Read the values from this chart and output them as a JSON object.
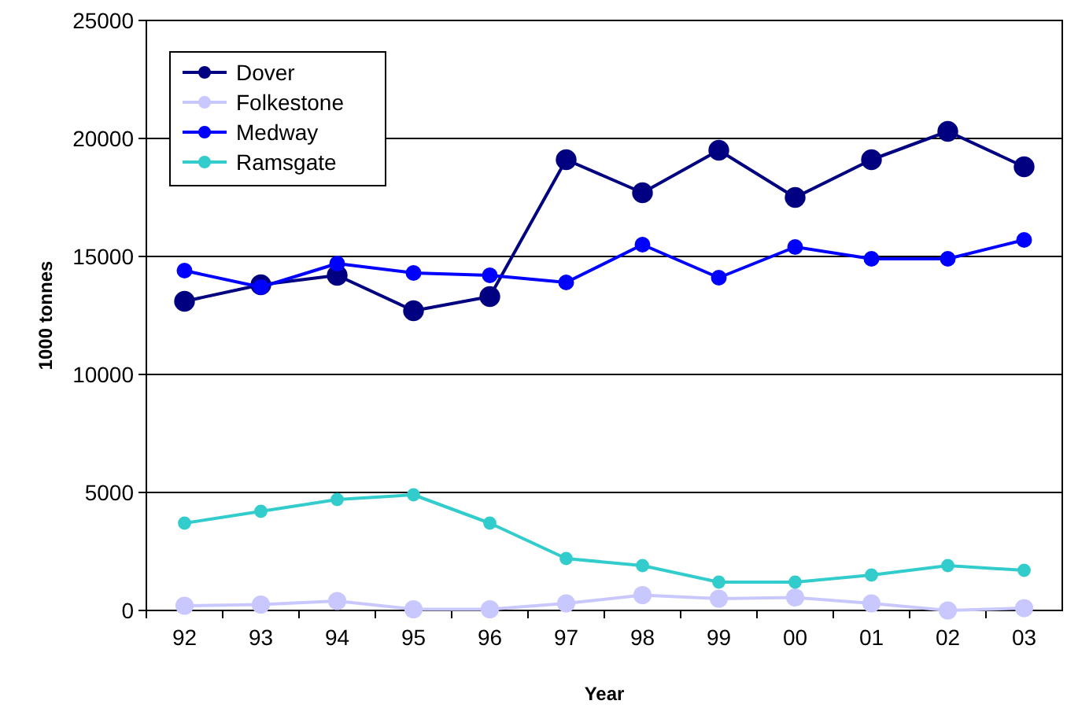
{
  "chart_data": {
    "type": "line",
    "xlabel": "Year",
    "ylabel": "1000 tonnes",
    "categories": [
      "92",
      "93",
      "94",
      "95",
      "96",
      "97",
      "98",
      "99",
      "00",
      "01",
      "02",
      "03"
    ],
    "series": [
      {
        "name": "Dover",
        "color": "#000080",
        "values": [
          13100,
          13800,
          14200,
          12700,
          13300,
          19100,
          17700,
          19500,
          17500,
          19100,
          20300,
          18800
        ]
      },
      {
        "name": "Folkestone",
        "color": "#c8c8ff",
        "values": [
          200,
          250,
          400,
          50,
          50,
          300,
          650,
          500,
          550,
          300,
          0,
          100
        ]
      },
      {
        "name": "Medway",
        "color": "#0000ff",
        "values": [
          14400,
          13700,
          14700,
          14300,
          14200,
          13900,
          15500,
          14100,
          15400,
          14900,
          14900,
          15700
        ]
      },
      {
        "name": "Ramsgate",
        "color": "#33cccc",
        "values": [
          3700,
          4200,
          4700,
          4900,
          3700,
          2200,
          1900,
          1200,
          1200,
          1500,
          1900,
          1700
        ]
      }
    ],
    "ylim": [
      0,
      25000
    ],
    "yticks": [
      0,
      5000,
      10000,
      15000,
      20000,
      25000
    ],
    "grid": "y",
    "legend": "top left",
    "marker": "circle",
    "line_style": "solid"
  }
}
